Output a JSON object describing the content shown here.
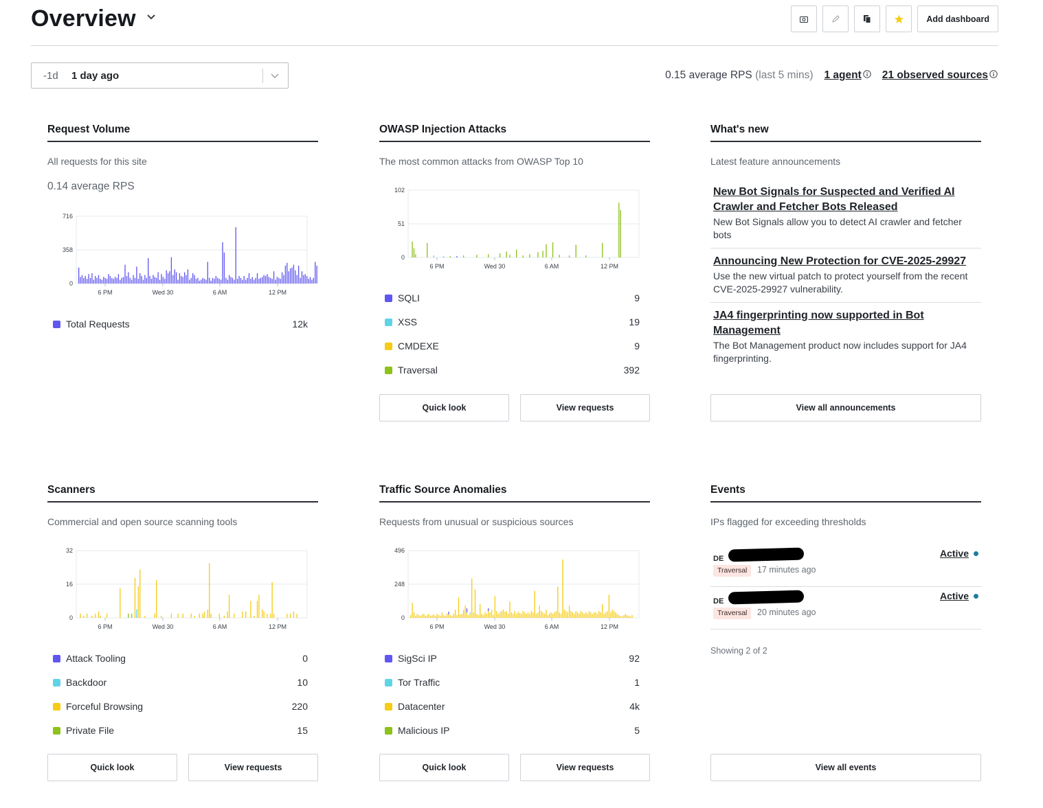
{
  "header": {
    "title": "Overview",
    "add_dashboard": "Add dashboard"
  },
  "toolbar_icons": [
    "camera-icon",
    "pencil-icon",
    "copy-icon",
    "star-icon"
  ],
  "time_range": {
    "short": "-1d",
    "label": "1 day ago"
  },
  "stats": {
    "avg_rps": "0.15 average RPS",
    "avg_window": "(last 5 mins)",
    "agents": "1 agent",
    "sources": "21 observed sources"
  },
  "colors": {
    "purple": "#6057f0",
    "cyan": "#5fd4e6",
    "yellow": "#f6cc14",
    "green": "#8cc21a",
    "accent": "#1f7d9b"
  },
  "x_ticks": [
    "6 PM",
    "Wed 30",
    "6 AM",
    "12 PM"
  ],
  "request_volume": {
    "title": "Request Volume",
    "subtitle": "All requests for this site",
    "avg": "0.14 average RPS",
    "legend": [
      {
        "label": "Total Requests",
        "value": "12k"
      }
    ],
    "button_quick": "",
    "button_view": ""
  },
  "owasp": {
    "title": "OWASP Injection Attacks",
    "subtitle": "The most common attacks from OWASP Top 10",
    "legend": [
      {
        "label": "SQLI",
        "value": "9"
      },
      {
        "label": "XSS",
        "value": "19"
      },
      {
        "label": "CMDEXE",
        "value": "9"
      },
      {
        "label": "Traversal",
        "value": "392"
      }
    ],
    "button_quick": "Quick look",
    "button_view": "View requests"
  },
  "whats_new": {
    "title": "What's new",
    "subtitle": "Latest feature announcements",
    "items": [
      {
        "title": "New Bot Signals for Suspected and Verified AI Crawler and Fetcher Bots Released",
        "body": "New Bot Signals allow you to detect AI crawler and fetcher bots"
      },
      {
        "title": "Announcing New Protection for CVE-2025-29927",
        "body": "Use the new virtual patch to protect yourself from the recent CVE-2025-29927 vulnerability."
      },
      {
        "title": "JA4 fingerprinting now supported in Bot Management",
        "body": "The Bot Management product now includes support for JA4 fingerprinting."
      }
    ],
    "button": "View all announcements"
  },
  "scanners": {
    "title": "Scanners",
    "subtitle": "Commercial and open source scanning tools",
    "legend": [
      {
        "label": "Attack Tooling",
        "value": "0"
      },
      {
        "label": "Backdoor",
        "value": "10"
      },
      {
        "label": "Forceful Browsing",
        "value": "220"
      },
      {
        "label": "Private File",
        "value": "15"
      }
    ],
    "button_quick": "Quick look",
    "button_view": "View requests"
  },
  "anomalies": {
    "title": "Traffic Source Anomalies",
    "subtitle": "Requests from unusual or suspicious sources",
    "legend": [
      {
        "label": "SigSci IP",
        "value": "92"
      },
      {
        "label": "Tor Traffic",
        "value": "1"
      },
      {
        "label": "Datacenter",
        "value": "4k"
      },
      {
        "label": "Malicious IP",
        "value": "5"
      }
    ],
    "button_quick": "Quick look",
    "button_view": "View requests"
  },
  "events": {
    "title": "Events",
    "subtitle": "IPs flagged for exceeding thresholds",
    "items": [
      {
        "country": "DE",
        "tag": "Traversal",
        "time": "17 minutes ago",
        "status": "Active"
      },
      {
        "country": "DE",
        "tag": "Traversal",
        "time": "20 minutes ago",
        "status": "Active"
      }
    ],
    "showing": "Showing 2 of 2",
    "button": "View all events"
  },
  "chart_data": [
    {
      "type": "bar",
      "name": "request-volume",
      "ylim": [
        0,
        716
      ],
      "yticks": [
        "0",
        "358",
        "716"
      ],
      "xlabel": "",
      "ylabel": "",
      "series": [
        {
          "name": "Total Requests",
          "color": "#6057f0",
          "values": [
            170,
            70,
            90,
            60,
            80,
            50,
            100,
            60,
            110,
            40,
            80,
            60,
            90,
            50,
            40,
            70,
            60,
            50,
            100,
            80,
            60,
            50,
            70,
            60,
            100,
            40,
            60,
            70,
            200,
            80,
            120,
            60,
            40,
            90,
            60,
            180,
            50,
            110,
            80,
            40,
            90,
            60,
            270,
            80,
            50,
            90,
            70,
            60,
            120,
            40,
            100,
            70,
            50,
            140,
            110,
            130,
            280,
            90,
            150,
            120,
            40,
            110,
            80,
            70,
            120,
            90,
            150,
            40,
            60,
            110,
            90,
            50,
            60,
            30,
            40,
            60,
            50,
            40,
            230,
            60,
            30,
            60,
            50,
            80,
            60,
            50,
            40,
            440,
            330,
            60,
            40,
            90,
            70,
            60,
            40,
            600,
            50,
            80,
            60,
            40,
            80,
            40,
            60,
            110,
            50,
            70,
            40,
            60,
            110,
            50,
            60,
            70,
            90,
            80,
            100,
            70,
            60,
            50,
            130,
            40,
            70,
            60,
            50,
            120,
            90,
            190,
            220,
            130,
            160,
            170,
            200,
            140,
            90,
            190,
            60,
            130,
            90,
            100,
            80,
            50,
            70,
            40,
            60,
            230,
            190
          ]
        }
      ]
    },
    {
      "type": "bar",
      "name": "owasp",
      "ylim": [
        0,
        102
      ],
      "yticks": [
        "0",
        "51",
        "102"
      ],
      "stack_order": [
        "Traversal",
        "CMDEXE",
        "XSS",
        "SQLI"
      ],
      "sparse": [
        {
          "i": 1,
          "Traversal": 24
        },
        {
          "i": 2,
          "Traversal": 14
        },
        {
          "i": 3,
          "Traversal": 5
        },
        {
          "i": 10,
          "Traversal": 22
        },
        {
          "i": 14,
          "XSS": 3
        },
        {
          "i": 20,
          "XSS": 2
        },
        {
          "i": 24,
          "Traversal": 2
        },
        {
          "i": 28,
          "SQLI": 2
        },
        {
          "i": 32,
          "Traversal": 3
        },
        {
          "i": 40,
          "Traversal": 4
        },
        {
          "i": 47,
          "Traversal": 5
        },
        {
          "i": 54,
          "Traversal": 6
        },
        {
          "i": 58,
          "Traversal": 9
        },
        {
          "i": 60,
          "Traversal": 4
        },
        {
          "i": 64,
          "Traversal": 12
        },
        {
          "i": 68,
          "Traversal": 3
        },
        {
          "i": 72,
          "Traversal": 5
        },
        {
          "i": 77,
          "Traversal": 8
        },
        {
          "i": 80,
          "Traversal": 10
        },
        {
          "i": 82,
          "Traversal": 20
        },
        {
          "i": 86,
          "Traversal": 23
        },
        {
          "i": 90,
          "Traversal": 4
        },
        {
          "i": 96,
          "Traversal": 3
        },
        {
          "i": 100,
          "Traversal": 19
        },
        {
          "i": 106,
          "Traversal": 3
        },
        {
          "i": 116,
          "Traversal": 22
        },
        {
          "i": 126,
          "Traversal": 83
        },
        {
          "i": 127,
          "Traversal": 72
        }
      ]
    },
    {
      "type": "bar",
      "name": "scanners",
      "ylim": [
        0,
        32
      ],
      "yticks": [
        "0",
        "16",
        "32"
      ],
      "stack_order": [
        "Private File",
        "Forceful Browsing",
        "Backdoor",
        "Attack Tooling"
      ],
      "sparse": [
        {
          "i": 1,
          "Forceful Browsing": 2
        },
        {
          "i": 3,
          "Forceful Browsing": 1
        },
        {
          "i": 5,
          "Forceful Browsing": 2
        },
        {
          "i": 8,
          "Forceful Browsing": 1
        },
        {
          "i": 10,
          "Forceful Browsing": 2
        },
        {
          "i": 12,
          "Forceful Browsing": 3
        },
        {
          "i": 13,
          "Forceful Browsing": 1
        },
        {
          "i": 17,
          "Forceful Browsing": 2
        },
        {
          "i": 25,
          "Forceful Browsing": 14
        },
        {
          "i": 30,
          "Private File": 2
        },
        {
          "i": 32,
          "Private File": 2
        },
        {
          "i": 34,
          "Forceful Browsing": 19
        },
        {
          "i": 35,
          "Backdoor": 4
        },
        {
          "i": 36,
          "Forceful Browsing": 15
        },
        {
          "i": 37,
          "Forceful Browsing": 23
        },
        {
          "i": 40,
          "Forceful Browsing": 1
        },
        {
          "i": 46,
          "Forceful Browsing": 2
        },
        {
          "i": 47,
          "Forceful Browsing": 18
        },
        {
          "i": 50,
          "Forceful Browsing": 1
        },
        {
          "i": 56,
          "Forceful Browsing": 2
        },
        {
          "i": 60,
          "Forceful Browsing": 2
        },
        {
          "i": 63,
          "Forceful Browsing": 2
        },
        {
          "i": 68,
          "Forceful Browsing": 2
        },
        {
          "i": 70,
          "Forceful Browsing": 1
        },
        {
          "i": 73,
          "Forceful Browsing": 2
        },
        {
          "i": 75,
          "Forceful Browsing": 2
        },
        {
          "i": 76,
          "Forceful Browsing": 3
        },
        {
          "i": 78,
          "Forceful Browsing": 4
        },
        {
          "i": 79,
          "Forceful Browsing": 26
        },
        {
          "i": 80,
          "Forceful Browsing": 2
        },
        {
          "i": 85,
          "Forceful Browsing": 2
        },
        {
          "i": 88,
          "Forceful Browsing": 1
        },
        {
          "i": 90,
          "Forceful Browsing": 3
        },
        {
          "i": 91,
          "Forceful Browsing": 11
        },
        {
          "i": 94,
          "Forceful Browsing": 2
        },
        {
          "i": 99,
          "Forceful Browsing": 3
        },
        {
          "i": 101,
          "Forceful Browsing": 3
        },
        {
          "i": 104,
          "Forceful Browsing": 8
        },
        {
          "i": 106,
          "Forceful Browsing": 1
        },
        {
          "i": 108,
          "Forceful Browsing": 8
        },
        {
          "i": 109,
          "Forceful Browsing": 11
        },
        {
          "i": 111,
          "Forceful Browsing": 4
        },
        {
          "i": 112,
          "Forceful Browsing": 3
        },
        {
          "i": 114,
          "Forceful Browsing": 2
        },
        {
          "i": 116,
          "Forceful Browsing": 2
        },
        {
          "i": 117,
          "Forceful Browsing": 17
        },
        {
          "i": 118,
          "Forceful Browsing": 2
        },
        {
          "i": 126,
          "Forceful Browsing": 2
        },
        {
          "i": 128,
          "Forceful Browsing": 2
        },
        {
          "i": 130,
          "Forceful Browsing": 3
        },
        {
          "i": 132,
          "Forceful Browsing": 2
        }
      ]
    },
    {
      "type": "bar",
      "name": "anomalies",
      "ylim": [
        0,
        496
      ],
      "yticks": [
        "0",
        "248",
        "496"
      ],
      "stack_order": [
        "Malicious IP",
        "Datacenter",
        "Tor Traffic",
        "SigSci IP"
      ],
      "base": {
        "series": "Datacenter",
        "values": [
          20,
          110,
          40,
          15,
          30,
          20,
          15,
          25,
          30,
          15,
          20,
          30,
          15,
          20,
          25,
          15,
          30,
          20,
          15,
          40,
          20,
          15,
          30,
          25,
          20,
          15,
          30,
          60,
          20,
          150,
          25,
          30,
          60,
          90,
          40,
          20,
          30,
          290,
          40,
          210,
          30,
          20,
          100,
          30,
          20,
          40,
          30,
          50,
          40,
          60,
          20,
          160,
          50,
          30,
          40,
          50,
          60,
          45,
          50,
          30,
          120,
          40,
          30,
          50,
          30,
          45,
          35,
          30,
          50,
          40,
          30,
          40,
          30,
          50,
          40,
          200,
          30,
          40,
          90,
          50,
          40,
          30,
          60,
          20,
          30,
          40,
          30,
          40,
          50,
          230,
          40,
          30,
          430,
          60,
          50,
          40,
          90,
          50,
          40,
          30,
          50,
          40,
          30,
          50,
          40,
          30,
          40,
          30,
          50,
          40,
          30,
          40,
          40,
          30,
          50,
          40,
          100,
          30,
          40,
          50,
          170,
          40,
          60,
          50,
          40,
          30,
          20,
          15,
          10,
          20,
          30,
          20,
          15,
          10,
          20
        ]
      },
      "sparse": [
        {
          "i": 23,
          "SigSci IP": 20
        },
        {
          "i": 34,
          "SigSci IP": 30
        },
        {
          "i": 36,
          "Tor Traffic": 10
        },
        {
          "i": 47,
          "SigSci IP": 20
        }
      ]
    }
  ]
}
